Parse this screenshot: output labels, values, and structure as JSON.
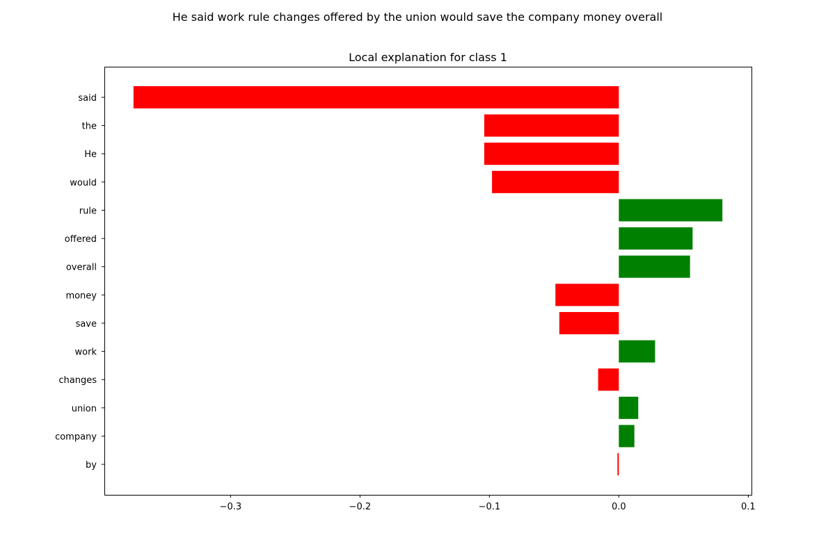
{
  "figure": {
    "suptitle": "He said work rule changes offered by the union would save the company money overall"
  },
  "chart_data": {
    "type": "bar",
    "orientation": "horizontal",
    "title": "Local explanation for class 1",
    "xlabel": "",
    "ylabel": "",
    "categories": [
      "said",
      "the",
      "He",
      "would",
      "rule",
      "offered",
      "overall",
      "money",
      "save",
      "work",
      "changes",
      "union",
      "company",
      "by"
    ],
    "values": [
      -0.375,
      -0.104,
      -0.104,
      -0.098,
      0.08,
      0.057,
      0.055,
      -0.049,
      -0.046,
      0.028,
      -0.016,
      0.015,
      0.012,
      -0.001
    ],
    "xlim": [
      -0.3975,
      0.1025
    ],
    "xticks": [
      -0.3,
      -0.2,
      -0.1,
      0.0,
      0.1
    ],
    "xtick_labels": [
      "−0.3",
      "−0.2",
      "−0.1",
      "0.0",
      "0.1"
    ],
    "grid": false,
    "legend": "none",
    "colors": {
      "positive": "#008000",
      "negative": "#ff0000"
    }
  }
}
